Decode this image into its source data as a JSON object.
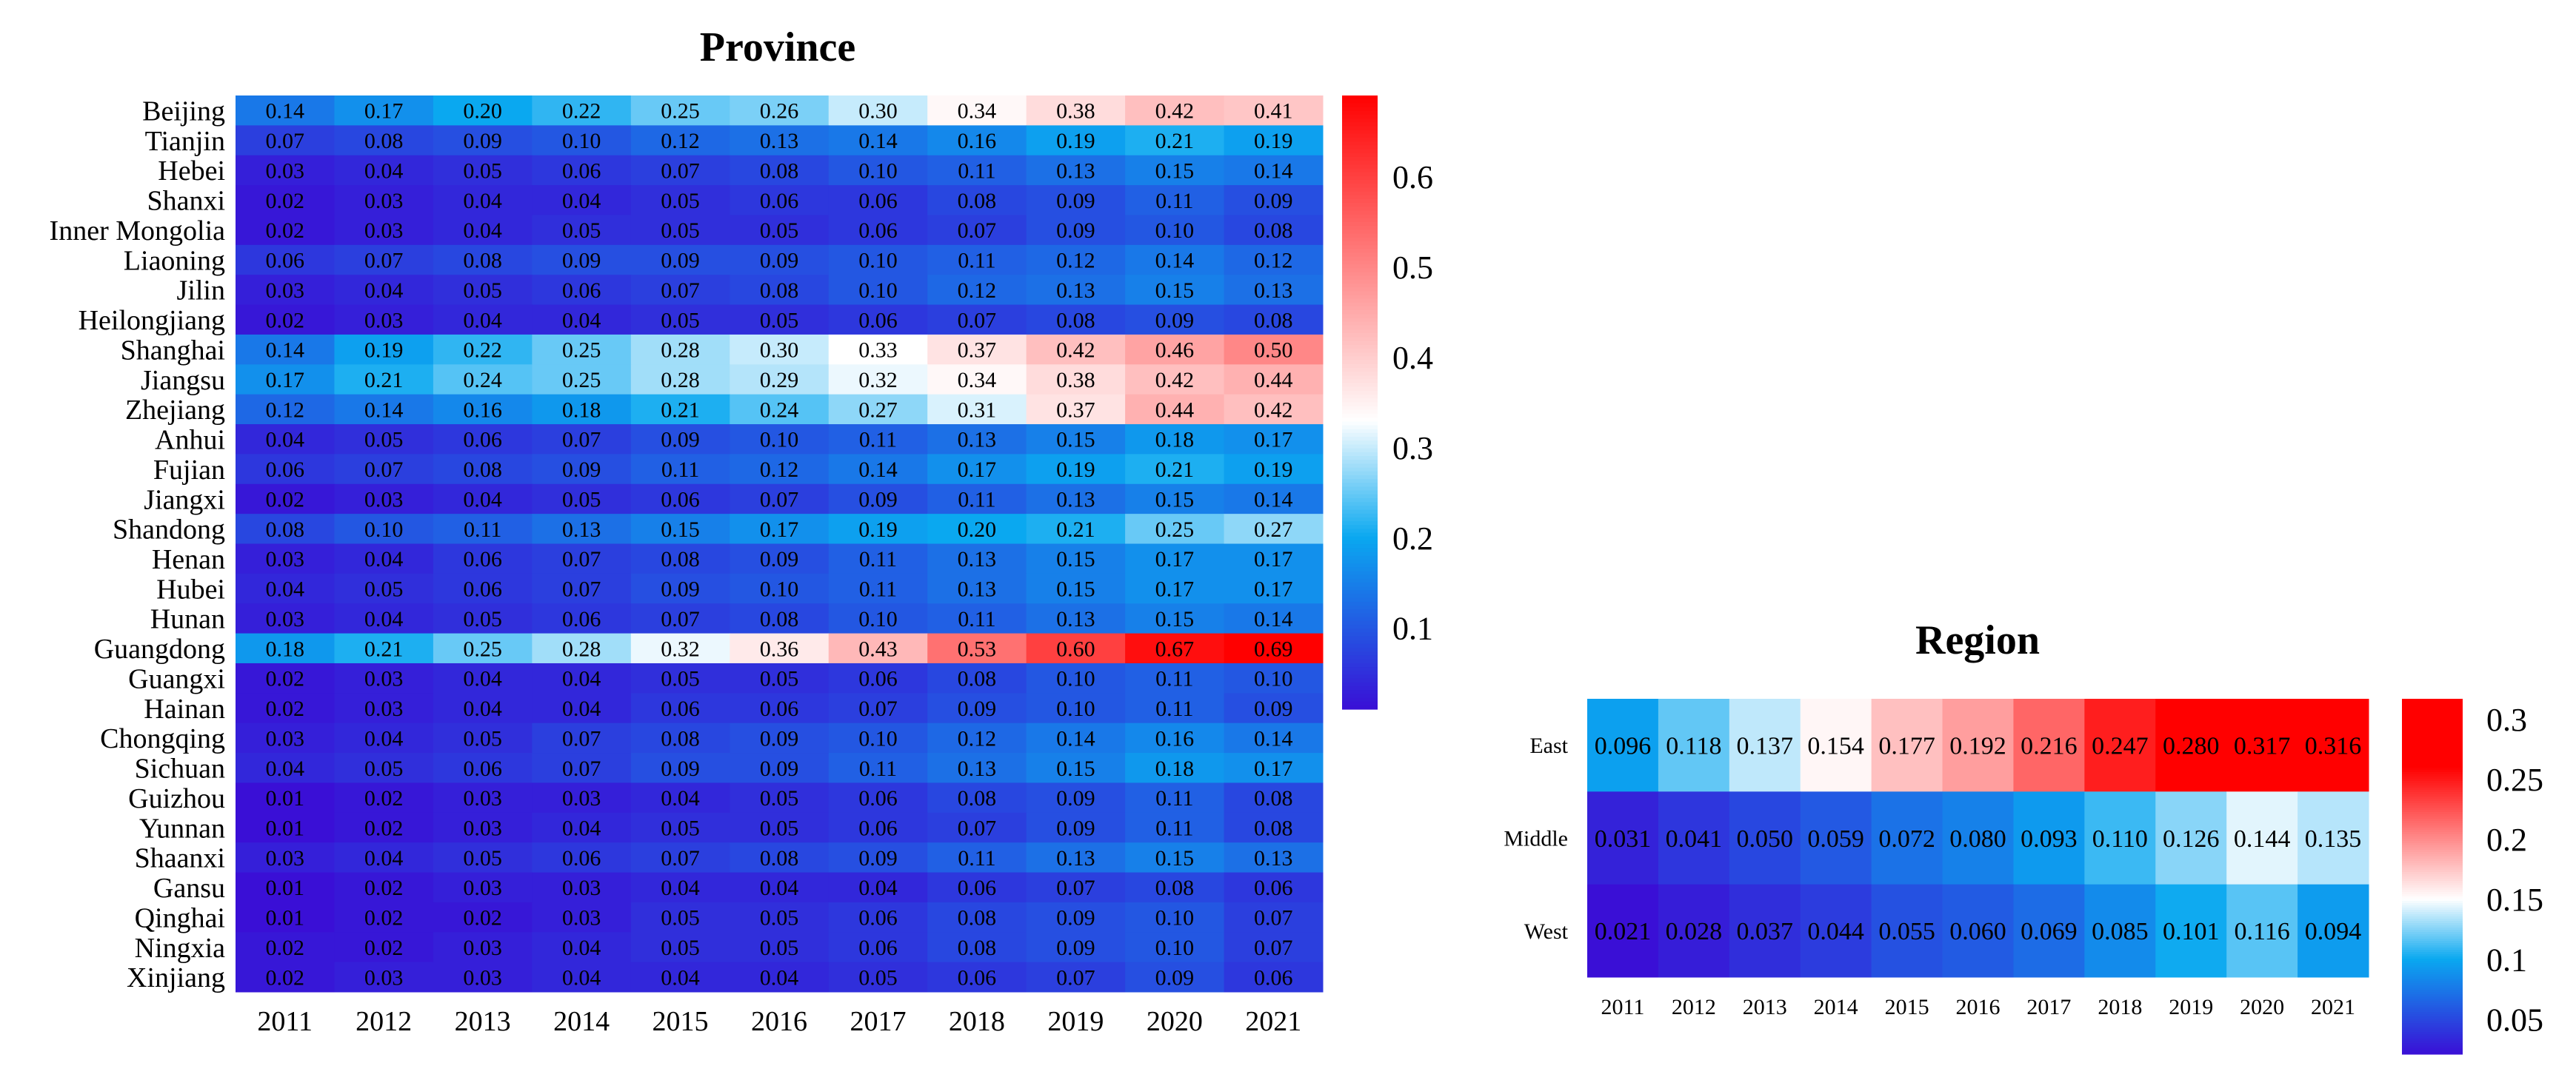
{
  "chart_data": [
    {
      "type": "heatmap",
      "title": "Province",
      "x": [
        "2011",
        "2012",
        "2013",
        "2014",
        "2015",
        "2016",
        "2017",
        "2018",
        "2019",
        "2020",
        "2021"
      ],
      "y": [
        "Beijing",
        "Tianjin",
        "Hebei",
        "Shanxi",
        "Inner Mongolia",
        "Liaoning",
        "Jilin",
        "Heilongjiang",
        "Shanghai",
        "Jiangsu",
        "Zhejiang",
        "Anhui",
        "Fujian",
        "Jiangxi",
        "Shandong",
        "Henan",
        "Hubei",
        "Hunan",
        "Guangdong",
        "Guangxi",
        "Hainan",
        "Chongqing",
        "Sichuan",
        "Guizhou",
        "Yunnan",
        "Shaanxi",
        "Gansu",
        "Qinghai",
        "Ningxia",
        "Xinjiang"
      ],
      "values": [
        [
          "0.14",
          "0.17",
          "0.20",
          "0.22",
          "0.25",
          "0.26",
          "0.30",
          "0.34",
          "0.38",
          "0.42",
          "0.41"
        ],
        [
          "0.07",
          "0.08",
          "0.09",
          "0.10",
          "0.12",
          "0.13",
          "0.14",
          "0.16",
          "0.19",
          "0.21",
          "0.19"
        ],
        [
          "0.03",
          "0.04",
          "0.05",
          "0.06",
          "0.07",
          "0.08",
          "0.10",
          "0.11",
          "0.13",
          "0.15",
          "0.14"
        ],
        [
          "0.02",
          "0.03",
          "0.04",
          "0.04",
          "0.05",
          "0.06",
          "0.06",
          "0.08",
          "0.09",
          "0.11",
          "0.09"
        ],
        [
          "0.02",
          "0.03",
          "0.04",
          "0.05",
          "0.05",
          "0.05",
          "0.06",
          "0.07",
          "0.09",
          "0.10",
          "0.08"
        ],
        [
          "0.06",
          "0.07",
          "0.08",
          "0.09",
          "0.09",
          "0.09",
          "0.10",
          "0.11",
          "0.12",
          "0.14",
          "0.12"
        ],
        [
          "0.03",
          "0.04",
          "0.05",
          "0.06",
          "0.07",
          "0.08",
          "0.10",
          "0.12",
          "0.13",
          "0.15",
          "0.13"
        ],
        [
          "0.02",
          "0.03",
          "0.04",
          "0.04",
          "0.05",
          "0.05",
          "0.06",
          "0.07",
          "0.08",
          "0.09",
          "0.08"
        ],
        [
          "0.14",
          "0.19",
          "0.22",
          "0.25",
          "0.28",
          "0.30",
          "0.33",
          "0.37",
          "0.42",
          "0.46",
          "0.50"
        ],
        [
          "0.17",
          "0.21",
          "0.24",
          "0.25",
          "0.28",
          "0.29",
          "0.32",
          "0.34",
          "0.38",
          "0.42",
          "0.44"
        ],
        [
          "0.12",
          "0.14",
          "0.16",
          "0.18",
          "0.21",
          "0.24",
          "0.27",
          "0.31",
          "0.37",
          "0.44",
          "0.42"
        ],
        [
          "0.04",
          "0.05",
          "0.06",
          "0.07",
          "0.09",
          "0.10",
          "0.11",
          "0.13",
          "0.15",
          "0.18",
          "0.17"
        ],
        [
          "0.06",
          "0.07",
          "0.08",
          "0.09",
          "0.11",
          "0.12",
          "0.14",
          "0.17",
          "0.19",
          "0.21",
          "0.19"
        ],
        [
          "0.02",
          "0.03",
          "0.04",
          "0.05",
          "0.06",
          "0.07",
          "0.09",
          "0.11",
          "0.13",
          "0.15",
          "0.14"
        ],
        [
          "0.08",
          "0.10",
          "0.11",
          "0.13",
          "0.15",
          "0.17",
          "0.19",
          "0.20",
          "0.21",
          "0.25",
          "0.27"
        ],
        [
          "0.03",
          "0.04",
          "0.06",
          "0.07",
          "0.08",
          "0.09",
          "0.11",
          "0.13",
          "0.15",
          "0.17",
          "0.17"
        ],
        [
          "0.04",
          "0.05",
          "0.06",
          "0.07",
          "0.09",
          "0.10",
          "0.11",
          "0.13",
          "0.15",
          "0.17",
          "0.17"
        ],
        [
          "0.03",
          "0.04",
          "0.05",
          "0.06",
          "0.07",
          "0.08",
          "0.10",
          "0.11",
          "0.13",
          "0.15",
          "0.14"
        ],
        [
          "0.18",
          "0.21",
          "0.25",
          "0.28",
          "0.32",
          "0.36",
          "0.43",
          "0.53",
          "0.60",
          "0.67",
          "0.69"
        ],
        [
          "0.02",
          "0.03",
          "0.04",
          "0.04",
          "0.05",
          "0.05",
          "0.06",
          "0.08",
          "0.10",
          "0.11",
          "0.10"
        ],
        [
          "0.02",
          "0.03",
          "0.04",
          "0.04",
          "0.06",
          "0.06",
          "0.07",
          "0.09",
          "0.10",
          "0.11",
          "0.09"
        ],
        [
          "0.03",
          "0.04",
          "0.05",
          "0.07",
          "0.08",
          "0.09",
          "0.10",
          "0.12",
          "0.14",
          "0.16",
          "0.14"
        ],
        [
          "0.04",
          "0.05",
          "0.06",
          "0.07",
          "0.09",
          "0.09",
          "0.11",
          "0.13",
          "0.15",
          "0.18",
          "0.17"
        ],
        [
          "0.01",
          "0.02",
          "0.03",
          "0.03",
          "0.04",
          "0.05",
          "0.06",
          "0.08",
          "0.09",
          "0.11",
          "0.08"
        ],
        [
          "0.01",
          "0.02",
          "0.03",
          "0.04",
          "0.05",
          "0.05",
          "0.06",
          "0.07",
          "0.09",
          "0.11",
          "0.08"
        ],
        [
          "0.03",
          "0.04",
          "0.05",
          "0.06",
          "0.07",
          "0.08",
          "0.09",
          "0.11",
          "0.13",
          "0.15",
          "0.13"
        ],
        [
          "0.01",
          "0.02",
          "0.03",
          "0.03",
          "0.04",
          "0.04",
          "0.04",
          "0.06",
          "0.07",
          "0.08",
          "0.06"
        ],
        [
          "0.01",
          "0.02",
          "0.02",
          "0.03",
          "0.05",
          "0.05",
          "0.06",
          "0.08",
          "0.09",
          "0.10",
          "0.07"
        ],
        [
          "0.02",
          "0.02",
          "0.03",
          "0.04",
          "0.05",
          "0.05",
          "0.06",
          "0.08",
          "0.09",
          "0.10",
          "0.07"
        ],
        [
          "0.02",
          "0.03",
          "0.03",
          "0.04",
          "0.04",
          "0.04",
          "0.05",
          "0.06",
          "0.07",
          "0.09",
          "0.06"
        ]
      ],
      "colorbar": {
        "range": [
          0.01,
          0.69
        ],
        "ticks": [
          "0.1",
          "0.2",
          "0.3",
          "0.4",
          "0.5",
          "0.6"
        ],
        "colors": [
          "#3a0fd6",
          "#0aa8f0",
          "#ffffff",
          "#ff0000"
        ],
        "stops": [
          0.01,
          0.2,
          0.33,
          0.69
        ]
      }
    },
    {
      "type": "heatmap",
      "title": "Region",
      "x": [
        "2011",
        "2012",
        "2013",
        "2014",
        "2015",
        "2016",
        "2017",
        "2018",
        "2019",
        "2020",
        "2021"
      ],
      "y": [
        "East",
        "Middle",
        "West"
      ],
      "values": [
        [
          "0.096",
          "0.118",
          "0.137",
          "0.154",
          "0.177",
          "0.192",
          "0.216",
          "0.247",
          "0.280",
          "0.317",
          "0.316"
        ],
        [
          "0.031",
          "0.041",
          "0.050",
          "0.059",
          "0.072",
          "0.080",
          "0.093",
          "0.110",
          "0.126",
          "0.144",
          "0.135"
        ],
        [
          "0.021",
          "0.028",
          "0.037",
          "0.044",
          "0.055",
          "0.060",
          "0.069",
          "0.085",
          "0.101",
          "0.116",
          "0.094"
        ]
      ],
      "colorbar": {
        "range": [
          0.021,
          0.317
        ],
        "ticks": [
          "0.05",
          "0.1",
          "0.15",
          "0.2",
          "0.25",
          "0.3"
        ],
        "colors": [
          "#3a0fd6",
          "#0aa8f0",
          "#ffffff",
          "#ff0000"
        ],
        "stops": [
          0.021,
          0.1,
          0.15,
          0.26
        ]
      }
    }
  ]
}
